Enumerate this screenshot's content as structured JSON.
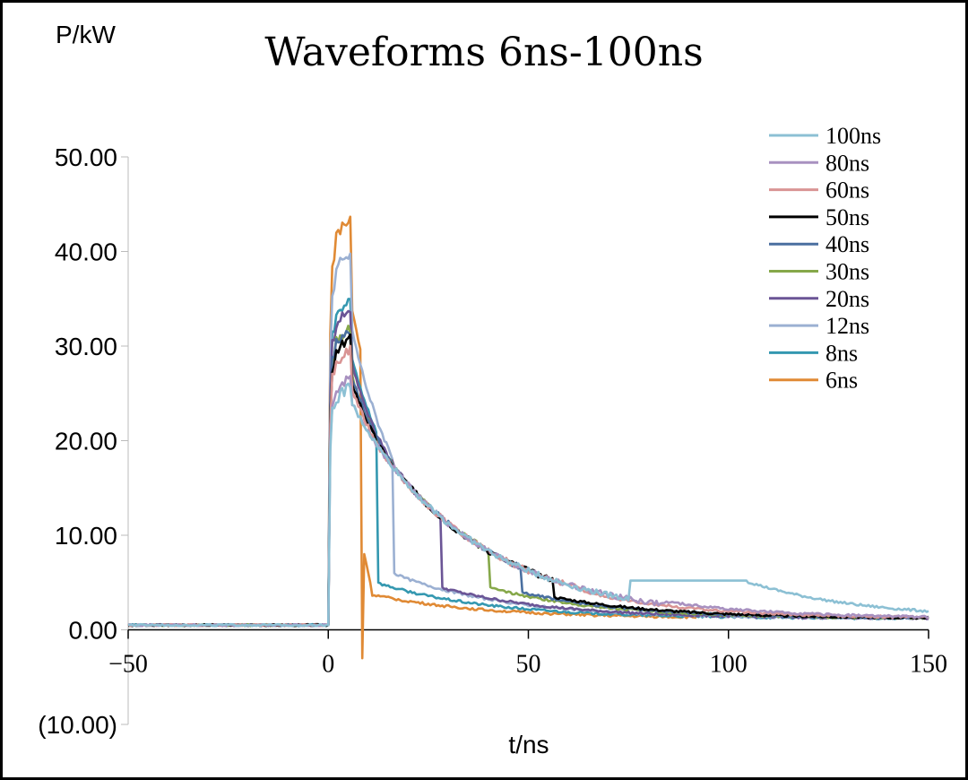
{
  "chart_data": {
    "type": "line",
    "title": "Waveforms 6ns-100ns",
    "xlabel": "t/ns",
    "ylabel": "P/kW",
    "xlim": [
      -50,
      150
    ],
    "ylim": [
      -10,
      50
    ],
    "x_ticks": [
      "-50",
      "0",
      "50",
      "100",
      "150"
    ],
    "y_ticks": [
      "(10.00)",
      "0.00",
      "10.00",
      "20.00",
      "30.00",
      "40.00",
      "50.00"
    ],
    "legend_position": "top-right",
    "grid": false,
    "series": [
      {
        "name": "100ns",
        "color": "#8cc0d4",
        "width": 104,
        "peak": 26,
        "decay": 70,
        "tail": 5.2
      },
      {
        "name": "80ns",
        "color": "#a891c0",
        "width": 84,
        "peak": 27,
        "decay": 70,
        "tail": 3
      },
      {
        "name": "60ns",
        "color": "#d99494",
        "width": 64,
        "peak": 30,
        "decay": 70,
        "tail": 4
      },
      {
        "name": "50ns",
        "color": "#000000",
        "width": 56,
        "peak": 31,
        "decay": 70,
        "tail": 3.5
      },
      {
        "name": "40ns",
        "color": "#4a6fa0",
        "width": 48,
        "peak": 32,
        "decay": 70,
        "tail": 4
      },
      {
        "name": "30ns",
        "color": "#86a84a",
        "width": 40,
        "peak": 32,
        "decay": 70,
        "tail": 4.5
      },
      {
        "name": "20ns",
        "color": "#6b5596",
        "width": 28,
        "peak": 34,
        "decay": 70,
        "tail": 4.5
      },
      {
        "name": "12ns",
        "color": "#9bb0d2",
        "width": 16,
        "peak": 40,
        "decay": 70,
        "tail": 6
      },
      {
        "name": "8ns",
        "color": "#3498b0",
        "width": 12,
        "peak": 35,
        "decay": 70,
        "tail": 5
      },
      {
        "name": "6ns",
        "color": "#e08a35",
        "width": 8,
        "peak": 43.5,
        "decay": 70,
        "tail": 4
      }
    ]
  }
}
